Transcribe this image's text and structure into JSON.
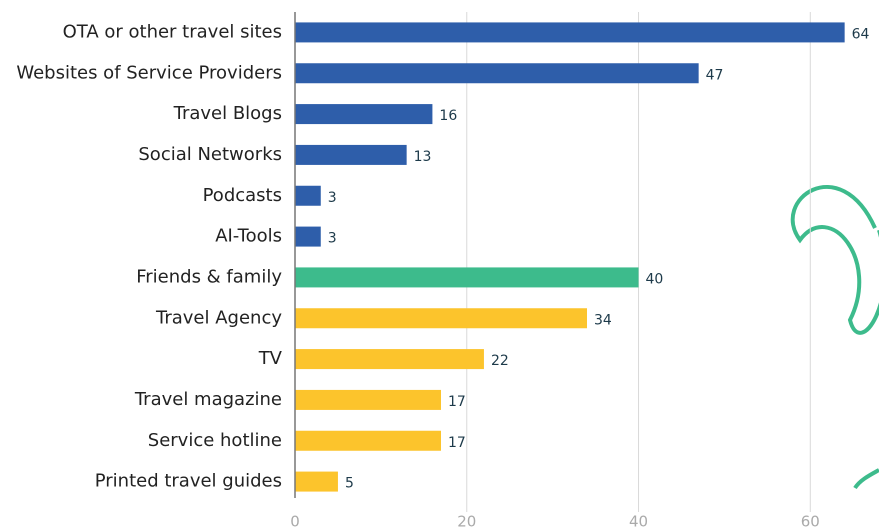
{
  "chart_data": {
    "type": "bar",
    "orientation": "horizontal",
    "categories": [
      "OTA or other travel sites",
      "Websites of Service Providers",
      "Travel Blogs",
      "Social Networks",
      "Podcasts",
      "AI-Tools",
      "Friends & family",
      "Travel Agency",
      "TV",
      "Travel magazine",
      "Service hotline",
      "Printed travel guides"
    ],
    "values": [
      64,
      47,
      16,
      13,
      3,
      3,
      40,
      34,
      22,
      17,
      17,
      5
    ],
    "colors": [
      "#2e5eaa",
      "#2e5eaa",
      "#2e5eaa",
      "#2e5eaa",
      "#2e5eaa",
      "#2e5eaa",
      "#3dbb8c",
      "#fcc42c",
      "#fcc42c",
      "#fcc42c",
      "#fcc42c",
      "#fcc42c"
    ],
    "xlim": [
      0,
      68
    ],
    "xticks": [
      0,
      20,
      40,
      60
    ],
    "grid": true
  }
}
